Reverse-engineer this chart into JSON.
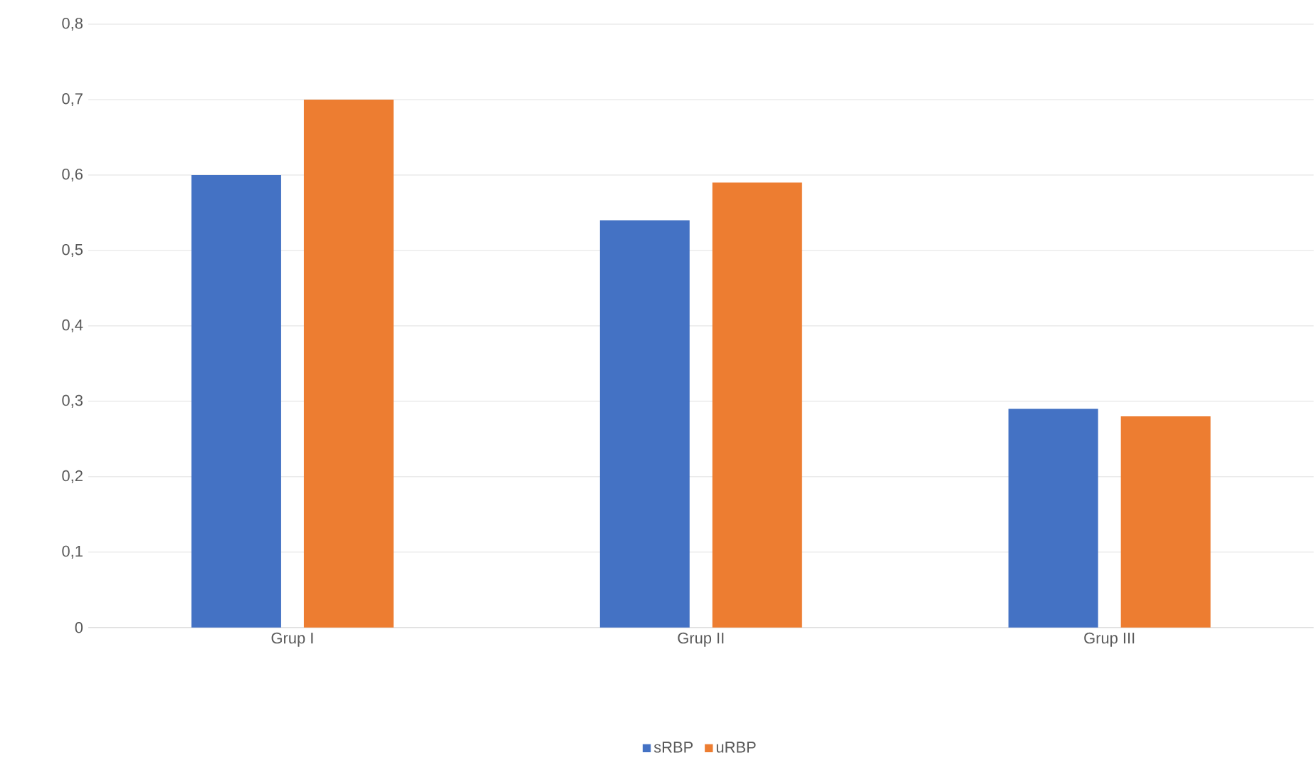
{
  "chart_data": {
    "type": "bar",
    "categories": [
      "Grup I",
      "Grup II",
      "Grup III"
    ],
    "series": [
      {
        "name": "sRBP",
        "color": "#4472c4",
        "values": [
          0.6,
          0.54,
          0.29
        ]
      },
      {
        "name": "uRBP",
        "color": "#ed7d31",
        "values": [
          0.7,
          0.59,
          0.28
        ]
      }
    ],
    "ylim": [
      0,
      0.8
    ],
    "yticks": [
      {
        "value": 0,
        "label": "0"
      },
      {
        "value": 0.1,
        "label": "0,1"
      },
      {
        "value": 0.2,
        "label": "0,2"
      },
      {
        "value": 0.3,
        "label": "0,3"
      },
      {
        "value": 0.4,
        "label": "0,4"
      },
      {
        "value": 0.5,
        "label": "0,5"
      },
      {
        "value": 0.6,
        "label": "0,6"
      },
      {
        "value": 0.7,
        "label": "0,7"
      },
      {
        "value": 0.8,
        "label": "0,8"
      }
    ],
    "grid": "y",
    "legend": "bottom"
  }
}
